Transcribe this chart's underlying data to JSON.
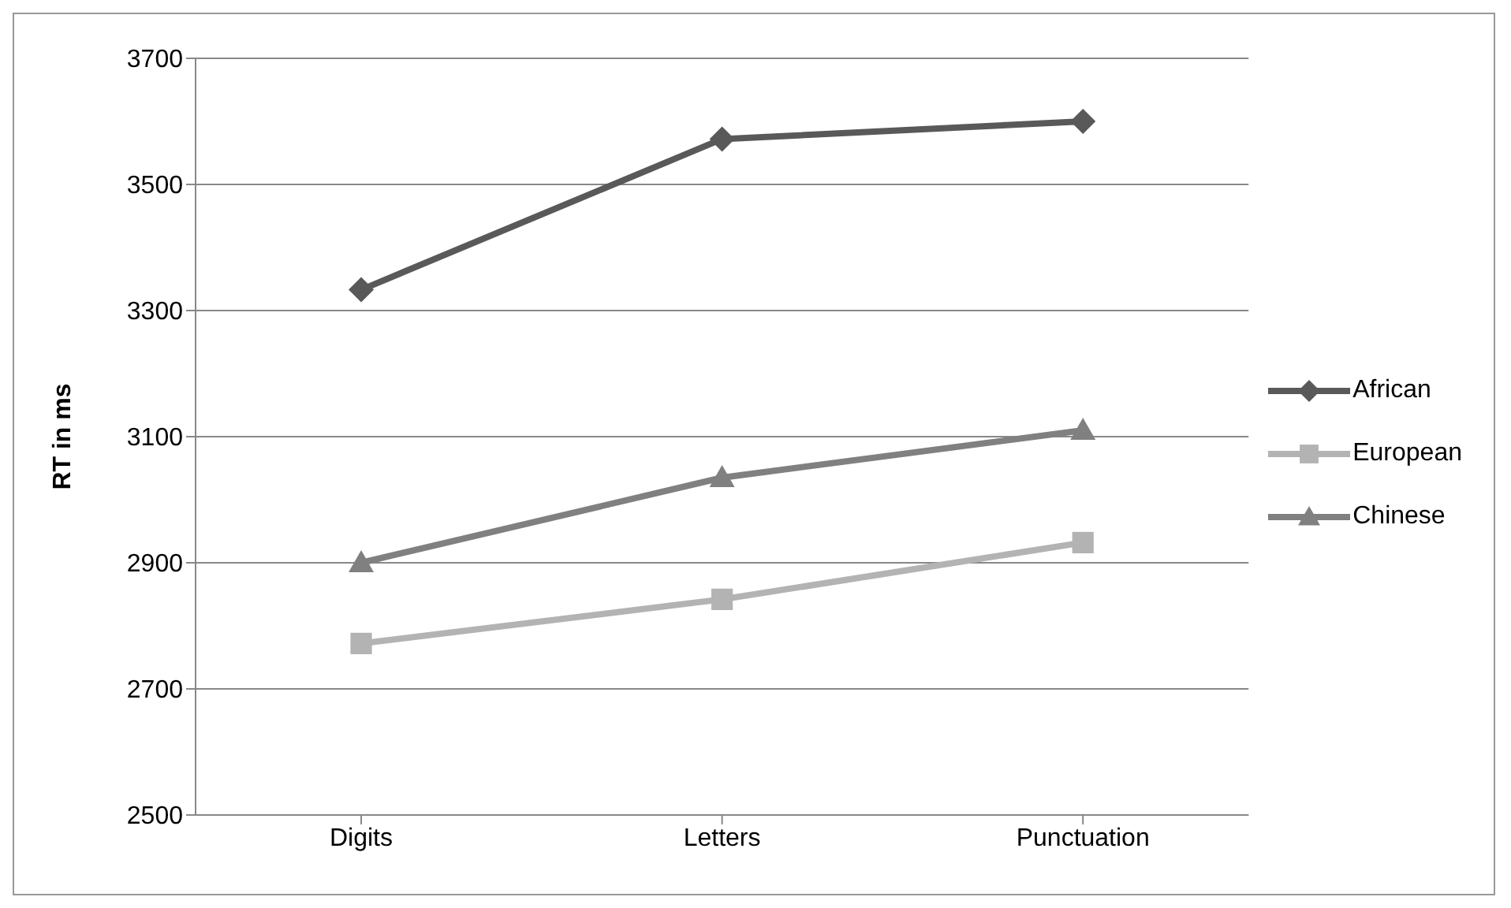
{
  "chart_data": {
    "type": "line",
    "ylabel": "RT in ms",
    "categories": [
      "Digits",
      "Letters",
      "Punctuation"
    ],
    "series": [
      {
        "name": "African",
        "color": "#595959",
        "marker": "diamond",
        "values": [
          3333,
          3572,
          3600
        ]
      },
      {
        "name": "European",
        "color": "#b3b3b3",
        "marker": "square",
        "values": [
          2772,
          2842,
          2932
        ]
      },
      {
        "name": "Chinese",
        "color": "#808080",
        "marker": "triangle",
        "values": [
          2900,
          3035,
          3110
        ]
      }
    ],
    "ylim": [
      2500,
      3700
    ],
    "yticks": [
      2500,
      2700,
      2900,
      3100,
      3300,
      3500,
      3700
    ],
    "grid": "y",
    "legend": "right",
    "line_style": "solid"
  }
}
